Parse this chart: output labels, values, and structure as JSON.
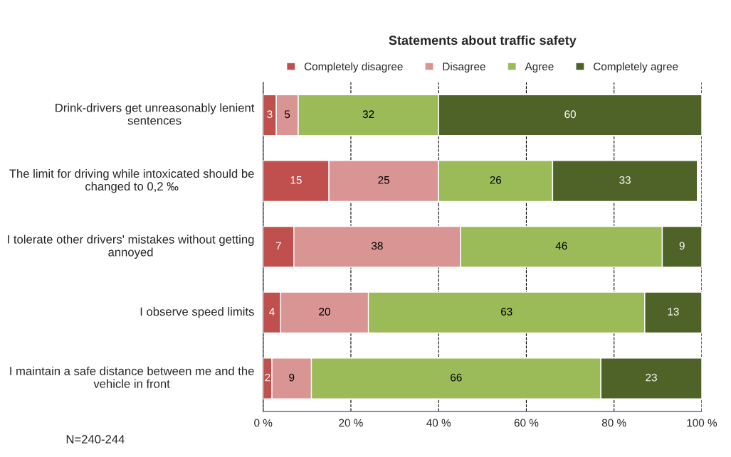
{
  "chart_data": {
    "type": "bar",
    "orientation": "horizontal",
    "stacked": true,
    "title": "Statements about traffic safety",
    "categories": [
      "Drink-drivers get unreasonably lenient sentences",
      "The limit for driving while intoxicated should be changed to 0,2 ‰",
      "I tolerate other drivers' mistakes without getting annoyed",
      "I observe speed limits",
      "I maintain a safe distance between me and the vehicle in front"
    ],
    "series": [
      {
        "name": "Completely disagree",
        "color": "#c0504d",
        "values": [
          3,
          15,
          7,
          4,
          2
        ]
      },
      {
        "name": "Disagree",
        "color": "#d99594",
        "values": [
          5,
          25,
          38,
          20,
          9
        ]
      },
      {
        "name": "Agree",
        "color": "#9bbb59",
        "values": [
          32,
          26,
          46,
          63,
          66
        ]
      },
      {
        "name": "Completely agree",
        "color": "#4f6228",
        "values": [
          60,
          33,
          9,
          13,
          23
        ]
      }
    ],
    "xlim": [
      0,
      100
    ],
    "xticks": [
      {
        "value": 0,
        "label": "0 %"
      },
      {
        "value": 20,
        "label": "20 %"
      },
      {
        "value": 40,
        "label": "40 %"
      },
      {
        "value": 60,
        "label": "60 %"
      },
      {
        "value": 80,
        "label": "80 %"
      },
      {
        "value": 100,
        "label": "100 %"
      }
    ],
    "grid": "x",
    "legend": "top",
    "data_labels": true,
    "annotations": [
      "N=240-244"
    ]
  }
}
